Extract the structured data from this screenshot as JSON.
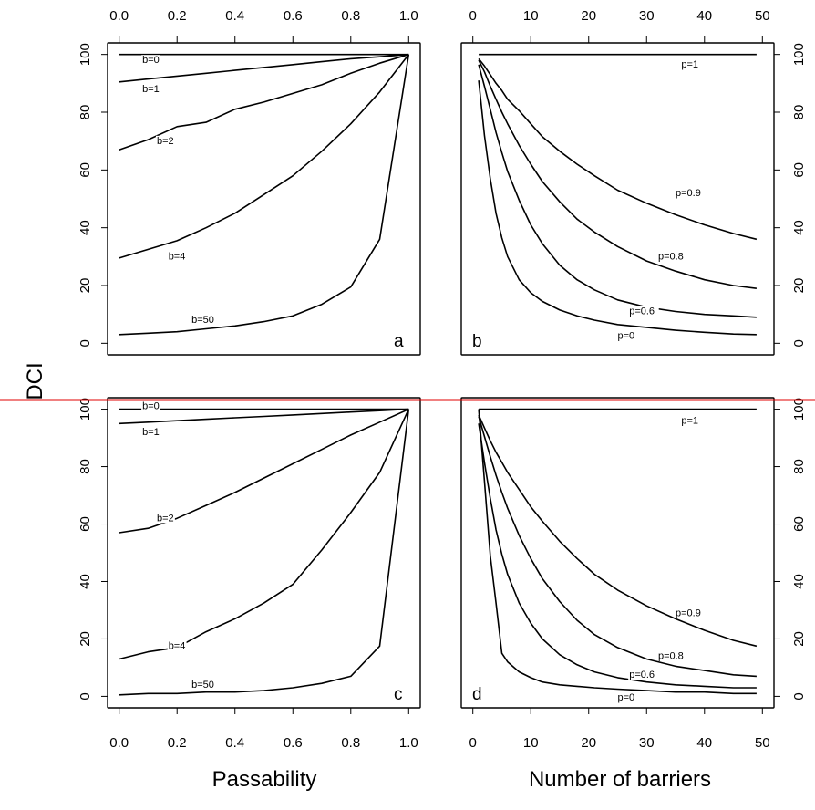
{
  "page": {
    "background": "#ffffff",
    "line_color": "#000000",
    "accent_line_color": "#e00000"
  },
  "labels": {
    "ylabel": "DCI",
    "xlabel_left": "Passability",
    "xlabel_right": "Number of barriers"
  },
  "chart_data": [
    {
      "panel": "a",
      "type": "line",
      "xlabel": "Passability",
      "ylabel": "DCI",
      "xlim": [
        0,
        1
      ],
      "ylim": [
        0,
        100
      ],
      "x_ticks": [
        "0.0",
        "0.2",
        "0.4",
        "0.6",
        "0.8",
        "1.0"
      ],
      "y_ticks": [
        "0",
        "20",
        "40",
        "60",
        "80",
        "100"
      ],
      "x_tick_position": "top",
      "y_tick_position": "left",
      "series": [
        {
          "name": "b=0",
          "x": [
            0,
            1
          ],
          "y": [
            100,
            100
          ],
          "label_at": [
            0.08,
            97
          ]
        },
        {
          "name": "b=1",
          "x": [
            0,
            0.1,
            0.2,
            0.3,
            0.4,
            0.5,
            0.6,
            0.7,
            0.8,
            0.9,
            1.0
          ],
          "y": [
            90.5,
            91.5,
            92.5,
            93.5,
            94.5,
            95.5,
            96.5,
            97.5,
            98.5,
            99.2,
            100
          ],
          "label_at": [
            0.08,
            87
          ]
        },
        {
          "name": "b=2",
          "x": [
            0,
            0.1,
            0.2,
            0.3,
            0.4,
            0.5,
            0.6,
            0.7,
            0.8,
            0.9,
            1.0
          ],
          "y": [
            67,
            70.5,
            75,
            76.5,
            81,
            83.5,
            86.5,
            89.5,
            93.5,
            97,
            100
          ],
          "label_at": [
            0.13,
            69
          ]
        },
        {
          "name": "b=4",
          "x": [
            0,
            0.1,
            0.2,
            0.3,
            0.4,
            0.5,
            0.6,
            0.7,
            0.8,
            0.9,
            1.0
          ],
          "y": [
            29.5,
            32.5,
            35.5,
            40,
            45,
            51.5,
            58,
            66.5,
            76,
            87,
            100
          ],
          "label_at": [
            0.17,
            29
          ]
        },
        {
          "name": "b=50",
          "x": [
            0,
            0.1,
            0.2,
            0.3,
            0.4,
            0.5,
            0.6,
            0.7,
            0.8,
            0.9,
            1.0
          ],
          "y": [
            3,
            3.5,
            4,
            5,
            6,
            7.5,
            9.5,
            13.5,
            19.5,
            36,
            100
          ],
          "label_at": [
            0.25,
            7
          ]
        }
      ]
    },
    {
      "panel": "b",
      "type": "line",
      "xlabel": "Number of barriers",
      "ylabel": "DCI",
      "xlim": [
        0,
        50
      ],
      "ylim": [
        0,
        100
      ],
      "x_ticks": [
        "0",
        "10",
        "20",
        "30",
        "40",
        "50"
      ],
      "y_ticks": [
        "0",
        "20",
        "40",
        "60",
        "80",
        "100"
      ],
      "x_tick_position": "top",
      "y_tick_position": "right",
      "series": [
        {
          "name": "p=1",
          "x": [
            1,
            49
          ],
          "y": [
            100,
            100
          ],
          "label_at": [
            36,
            95.5
          ]
        },
        {
          "name": "p=0.9",
          "x": [
            1,
            2,
            3,
            4,
            5,
            6,
            8,
            10,
            12,
            15,
            18,
            21,
            25,
            30,
            35,
            40,
            45,
            49
          ],
          "y": [
            98.5,
            96,
            93,
            90,
            87.5,
            84.5,
            80.5,
            76,
            71.5,
            66.5,
            62,
            58,
            53,
            48.5,
            44.5,
            41,
            38,
            36
          ],
          "label_at": [
            35,
            51
          ]
        },
        {
          "name": "p=0.8",
          "x": [
            1,
            2,
            3,
            4,
            5,
            6,
            8,
            10,
            12,
            15,
            18,
            21,
            25,
            30,
            35,
            40,
            45,
            49
          ],
          "y": [
            98,
            94,
            89,
            84.5,
            80,
            76,
            68.5,
            62,
            56,
            49,
            43,
            38.5,
            33.5,
            28.5,
            25,
            22,
            20,
            19
          ],
          "label_at": [
            32,
            29
          ]
        },
        {
          "name": "p=0.6",
          "x": [
            1,
            2,
            3,
            4,
            5,
            6,
            8,
            10,
            12,
            15,
            18,
            21,
            25,
            30,
            35,
            40,
            45,
            49
          ],
          "y": [
            96.5,
            89,
            81,
            73,
            66,
            59.5,
            49.5,
            41,
            34.5,
            27,
            22,
            18.5,
            15,
            12.5,
            11,
            10,
            9.5,
            9
          ],
          "label_at": [
            27,
            10
          ]
        },
        {
          "name": "p=0",
          "x": [
            1,
            2,
            3,
            4,
            5,
            6,
            8,
            10,
            12,
            15,
            18,
            21,
            25,
            30,
            35,
            40,
            45,
            49
          ],
          "y": [
            91,
            72,
            57,
            45,
            36.5,
            30,
            22,
            17.5,
            14.5,
            11.5,
            9.5,
            8,
            6.5,
            5.5,
            4.5,
            3.8,
            3.2,
            3
          ],
          "label_at": [
            25,
            1.5
          ]
        }
      ]
    },
    {
      "panel": "c",
      "type": "line",
      "xlabel": "Passability",
      "ylabel": "DCI",
      "xlim": [
        0,
        1
      ],
      "ylim": [
        0,
        100
      ],
      "x_ticks": [
        "0.0",
        "0.2",
        "0.4",
        "0.6",
        "0.8",
        "1.0"
      ],
      "y_ticks": [
        "0",
        "20",
        "40",
        "60",
        "80",
        "100"
      ],
      "x_tick_position": "bottom",
      "y_tick_position": "left",
      "series": [
        {
          "name": "b=0",
          "x": [
            0,
            1
          ],
          "y": [
            100,
            100
          ],
          "label_at": [
            0.08,
            100
          ]
        },
        {
          "name": "b=1",
          "x": [
            0,
            0.1,
            0.2,
            0.3,
            0.4,
            0.5,
            0.6,
            0.7,
            0.8,
            0.9,
            1.0
          ],
          "y": [
            95,
            95.5,
            96,
            96.5,
            97,
            97.5,
            98,
            98.5,
            99,
            99.5,
            100
          ],
          "label_at": [
            0.08,
            91
          ]
        },
        {
          "name": "b=2",
          "x": [
            0,
            0.1,
            0.2,
            0.3,
            0.4,
            0.5,
            0.6,
            0.7,
            0.8,
            0.9,
            1.0
          ],
          "y": [
            57,
            58.5,
            62,
            66.5,
            71,
            76,
            81,
            86,
            91,
            95.5,
            100
          ],
          "label_at": [
            0.13,
            61
          ]
        },
        {
          "name": "b=4",
          "x": [
            0,
            0.1,
            0.2,
            0.3,
            0.4,
            0.5,
            0.6,
            0.7,
            0.8,
            0.9,
            1.0
          ],
          "y": [
            13,
            15.5,
            17,
            22.5,
            27,
            32.5,
            39,
            51,
            64,
            78,
            100
          ],
          "label_at": [
            0.17,
            16.5
          ]
        },
        {
          "name": "b=50",
          "x": [
            0,
            0.1,
            0.2,
            0.3,
            0.4,
            0.5,
            0.6,
            0.7,
            0.8,
            0.9,
            1.0
          ],
          "y": [
            0.5,
            1,
            1,
            1.5,
            1.5,
            2,
            3,
            4.5,
            7,
            17.5,
            100
          ],
          "label_at": [
            0.25,
            3
          ]
        }
      ]
    },
    {
      "panel": "d",
      "type": "line",
      "xlabel": "Number of barriers",
      "ylabel": "DCI",
      "xlim": [
        0,
        50
      ],
      "ylim": [
        0,
        100
      ],
      "x_ticks": [
        "0",
        "10",
        "20",
        "30",
        "40",
        "50"
      ],
      "y_ticks": [
        "0",
        "20",
        "40",
        "60",
        "80",
        "100"
      ],
      "x_tick_position": "bottom",
      "y_tick_position": "right",
      "series": [
        {
          "name": "p=1",
          "x": [
            1,
            49
          ],
          "y": [
            100,
            100
          ],
          "label_at": [
            36,
            95
          ]
        },
        {
          "name": "p=0.9",
          "x": [
            1,
            2,
            3,
            4,
            5,
            6,
            8,
            10,
            12,
            15,
            18,
            21,
            25,
            30,
            35,
            40,
            45,
            49
          ],
          "y": [
            98,
            93.5,
            89,
            85,
            81.5,
            78,
            72,
            66,
            61,
            54,
            48,
            42.5,
            37,
            31.5,
            27,
            23,
            19.5,
            17.5
          ],
          "label_at": [
            35,
            28
          ]
        },
        {
          "name": "p=0.8",
          "x": [
            1,
            2,
            3,
            4,
            5,
            6,
            8,
            10,
            12,
            15,
            18,
            21,
            25,
            30,
            35,
            40,
            45,
            49
          ],
          "y": [
            97.5,
            90.5,
            83.5,
            77,
            71,
            65.5,
            56,
            48,
            41,
            33,
            26.5,
            21.5,
            17,
            13,
            10.5,
            9,
            7.5,
            7
          ],
          "label_at": [
            32,
            13
          ]
        },
        {
          "name": "p=0.6",
          "x": [
            1,
            2,
            3,
            4,
            5,
            6,
            8,
            10,
            12,
            15,
            18,
            21,
            25,
            30,
            35,
            40,
            45,
            49
          ],
          "y": [
            95,
            81.5,
            69,
            58,
            49.5,
            42.5,
            32.5,
            25.5,
            20,
            14.5,
            11,
            8.5,
            6.5,
            5,
            4,
            3.5,
            3,
            3
          ],
          "label_at": [
            27,
            6.5
          ]
        },
        {
          "name": "p=0",
          "x": [
            1,
            2,
            3,
            4,
            5,
            6,
            8,
            10,
            12,
            15,
            18,
            21,
            25,
            30,
            35,
            40,
            45,
            49
          ],
          "y": [
            100,
            75,
            49,
            32.5,
            15,
            12,
            8.5,
            6.5,
            5,
            4,
            3.5,
            3,
            2.5,
            2,
            1.5,
            1.5,
            1,
            1
          ],
          "label_at": [
            25,
            -1.5
          ]
        }
      ]
    }
  ]
}
